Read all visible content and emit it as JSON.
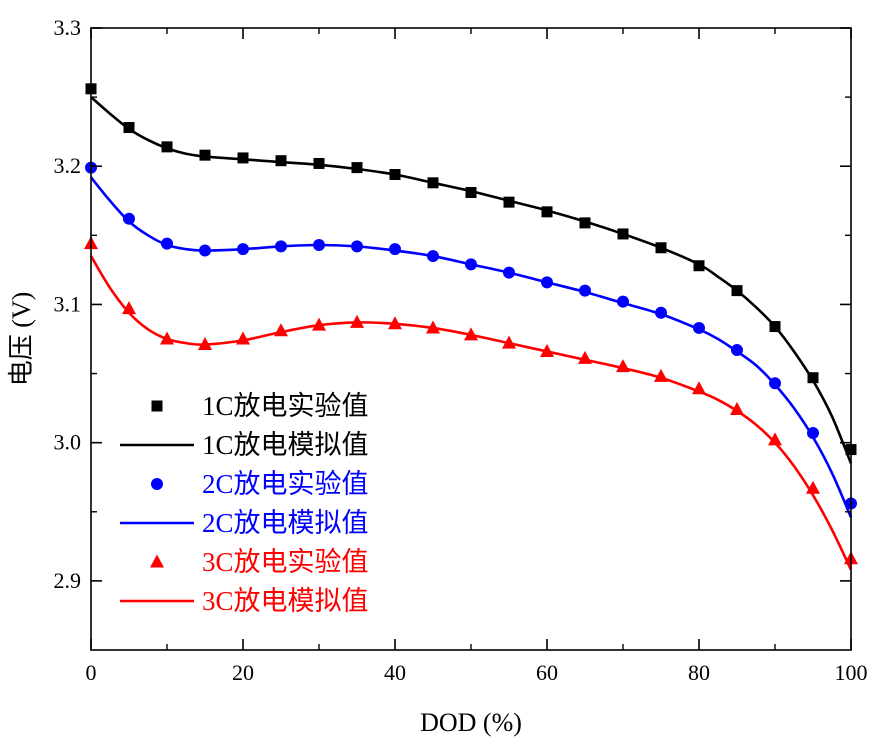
{
  "chart_data": {
    "type": "line",
    "title": "",
    "xlabel": "DOD (%)",
    "ylabel": "电压 (V)",
    "xlim": [
      0,
      100
    ],
    "ylim": [
      2.85,
      3.3
    ],
    "xticks": [
      0,
      20,
      40,
      60,
      80,
      100
    ],
    "yticks": [
      2.9,
      3.0,
      3.1,
      3.2,
      3.3
    ],
    "xtick_labels": [
      "0",
      "20",
      "40",
      "60",
      "80",
      "100"
    ],
    "ytick_labels": [
      "2.9",
      "3.0",
      "3.1",
      "3.2",
      "3.3"
    ],
    "grid": false,
    "legend_position": "bottom-left",
    "x": [
      0,
      5,
      10,
      15,
      20,
      25,
      30,
      35,
      40,
      45,
      50,
      55,
      60,
      65,
      70,
      75,
      80,
      85,
      90,
      95,
      100
    ],
    "series": [
      {
        "name": "1C放电实验值",
        "kind": "markers",
        "marker": "square",
        "color": "#000000",
        "values": [
          3.256,
          3.228,
          3.214,
          3.208,
          3.206,
          3.204,
          3.202,
          3.199,
          3.194,
          3.188,
          3.181,
          3.174,
          3.167,
          3.159,
          3.151,
          3.141,
          3.128,
          3.11,
          3.084,
          3.047,
          2.995
        ]
      },
      {
        "name": "1C放电模拟值",
        "kind": "line",
        "color": "#000000",
        "x": [
          0,
          2.5,
          5,
          7.5,
          10,
          12.5,
          15,
          20,
          25,
          30,
          35,
          40,
          45,
          50,
          55,
          60,
          65,
          70,
          75,
          80,
          82.5,
          85,
          87.5,
          90,
          92.5,
          95,
          97.5,
          100
        ],
        "values": [
          3.25,
          3.238,
          3.227,
          3.219,
          3.213,
          3.209,
          3.207,
          3.205,
          3.203,
          3.201,
          3.198,
          3.194,
          3.188,
          3.182,
          3.175,
          3.168,
          3.16,
          3.151,
          3.141,
          3.129,
          3.12,
          3.11,
          3.098,
          3.084,
          3.066,
          3.045,
          3.019,
          2.985
        ]
      },
      {
        "name": "2C放电实验值",
        "kind": "markers",
        "marker": "circle",
        "color": "#0000ff",
        "values": [
          3.199,
          3.162,
          3.144,
          3.139,
          3.14,
          3.142,
          3.143,
          3.142,
          3.14,
          3.135,
          3.129,
          3.123,
          3.116,
          3.11,
          3.102,
          3.094,
          3.083,
          3.067,
          3.043,
          3.007,
          2.956
        ]
      },
      {
        "name": "2C放电模拟值",
        "kind": "line",
        "color": "#0000ff",
        "x": [
          0,
          2.5,
          5,
          7.5,
          10,
          12.5,
          15,
          20,
          25,
          30,
          35,
          40,
          45,
          50,
          55,
          60,
          65,
          70,
          75,
          80,
          82.5,
          85,
          87.5,
          90,
          92.5,
          95,
          97.5,
          100
        ],
        "values": [
          3.192,
          3.175,
          3.16,
          3.15,
          3.143,
          3.14,
          3.139,
          3.14,
          3.142,
          3.143,
          3.142,
          3.139,
          3.135,
          3.129,
          3.123,
          3.116,
          3.109,
          3.101,
          3.093,
          3.082,
          3.075,
          3.066,
          3.056,
          3.042,
          3.025,
          3.004,
          2.978,
          2.946
        ]
      },
      {
        "name": "3C放电实验值",
        "kind": "markers",
        "marker": "triangle",
        "color": "#ff0000",
        "values": [
          3.144,
          3.097,
          3.075,
          3.071,
          3.075,
          3.081,
          3.085,
          3.087,
          3.086,
          3.083,
          3.078,
          3.072,
          3.066,
          3.061,
          3.055,
          3.048,
          3.039,
          3.024,
          3.002,
          2.967,
          2.916
        ]
      },
      {
        "name": "3C放电模拟值",
        "kind": "line",
        "color": "#ff0000",
        "x": [
          0,
          2.5,
          5,
          7.5,
          10,
          12.5,
          15,
          20,
          25,
          30,
          35,
          40,
          45,
          50,
          55,
          60,
          65,
          70,
          75,
          80,
          82.5,
          85,
          87.5,
          90,
          92.5,
          95,
          97.5,
          100
        ],
        "values": [
          3.135,
          3.112,
          3.094,
          3.082,
          3.075,
          3.072,
          3.071,
          3.074,
          3.08,
          3.085,
          3.087,
          3.086,
          3.083,
          3.078,
          3.072,
          3.066,
          3.06,
          3.054,
          3.047,
          3.037,
          3.031,
          3.023,
          3.013,
          3.0,
          2.983,
          2.962,
          2.937,
          2.908
        ]
      }
    ]
  }
}
